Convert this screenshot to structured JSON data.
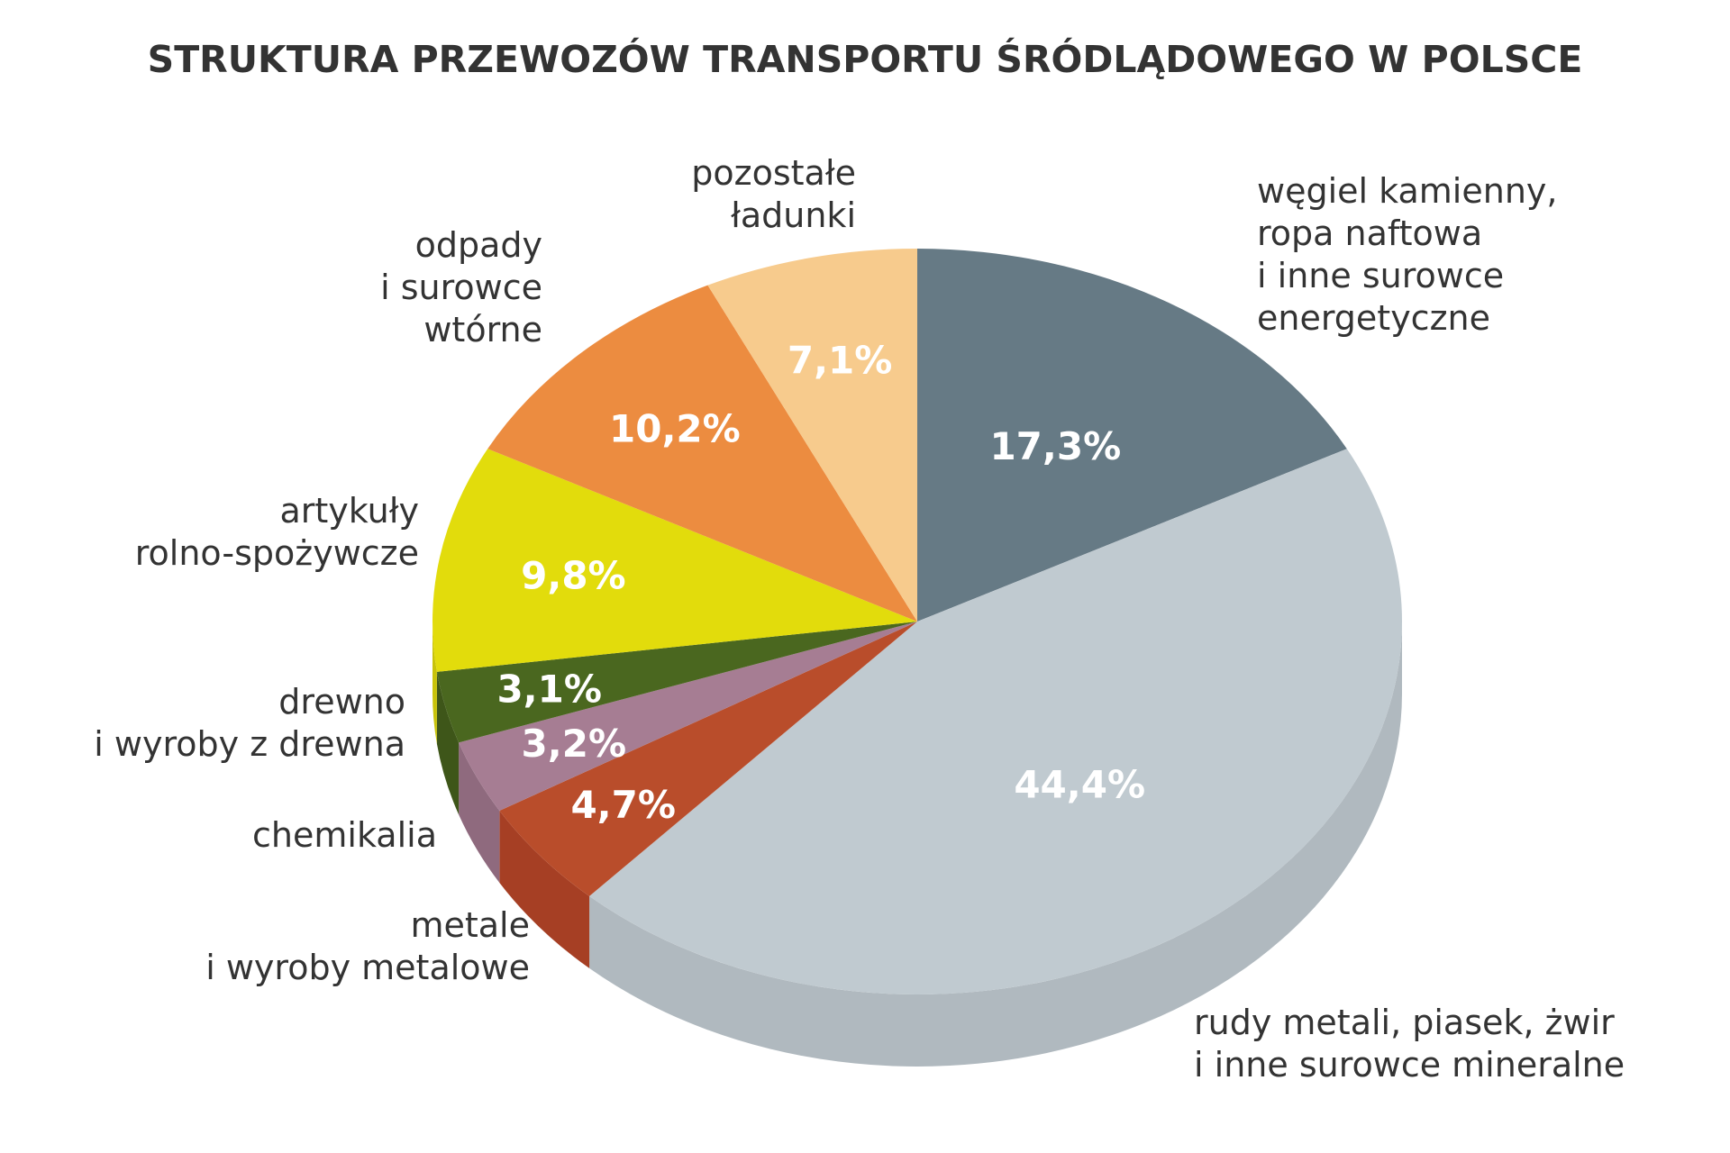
{
  "chart_data": {
    "type": "pie",
    "title": "STRUKTURA PRZEWOZÓW TRANSPORTU ŚRÓDLĄDOWEGO W POLSCE",
    "slices": [
      {
        "label": [
          "węgiel kamienny,",
          "ropa naftowa",
          "i inne surowce",
          "energetyczne"
        ],
        "value": 17.3,
        "value_label": "17,3%",
        "color": "#667a85",
        "side_color": "#56656e"
      },
      {
        "label": [
          "rudy metali, piasek, żwir",
          "i inne surowce mineralne"
        ],
        "value": 44.4,
        "value_label": "44,4%",
        "color": "#c0cad0",
        "side_color": "#b0b9bf"
      },
      {
        "label": [
          "metale",
          "i wyroby metalowe"
        ],
        "value": 4.7,
        "value_label": "4,7%",
        "color": "#b94d2b",
        "side_color": "#a63f24"
      },
      {
        "label": [
          "chemikalia"
        ],
        "value": 3.2,
        "value_label": "3,2%",
        "color": "#a67d93",
        "side_color": "#8f6a7e"
      },
      {
        "label": [
          "drewno",
          "i wyroby z drewna"
        ],
        "value": 3.1,
        "value_label": "3,1%",
        "color": "#4a671f",
        "side_color": "#3e5619"
      },
      {
        "label": [
          "artykuły",
          "rolno-spożywcze"
        ],
        "value": 9.8,
        "value_label": "9,8%",
        "color": "#e2dc0c",
        "side_color": "#c8c30a"
      },
      {
        "label": [
          "odpady",
          "i surowce",
          "wtórne"
        ],
        "value": 10.2,
        "value_label": "10,2%",
        "color": "#ec8c40",
        "side_color": "#d47a33"
      },
      {
        "label": [
          "pozostałe",
          "ładunki"
        ],
        "value": 7.1,
        "value_label": "7,1%",
        "color": "#f7cb8d",
        "side_color": "#e6b878"
      }
    ]
  }
}
